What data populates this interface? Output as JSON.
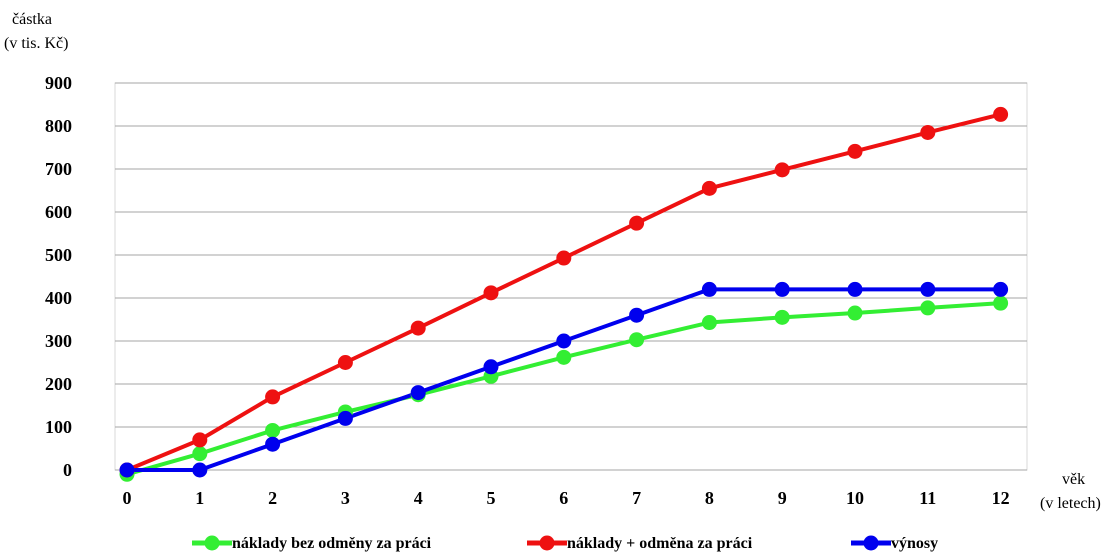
{
  "chart_data": {
    "type": "line",
    "ylabel_line1": "částka",
    "ylabel_line2": "(v tis. Kč)",
    "xlabel_line1": "věk",
    "xlabel_line2": "(v letech)",
    "x": [
      0,
      1,
      2,
      3,
      4,
      5,
      6,
      7,
      8,
      9,
      10,
      11,
      12
    ],
    "ylim": [
      0,
      900
    ],
    "yticks": [
      0,
      100,
      200,
      300,
      400,
      500,
      600,
      700,
      800,
      900
    ],
    "grid": true,
    "legend_position": "bottom",
    "series": [
      {
        "name": "náklady bez odměny za práci",
        "color": "#33ee33",
        "values": [
          -10,
          38,
          92,
          135,
          175,
          218,
          262,
          303,
          343,
          355,
          365,
          377,
          388
        ]
      },
      {
        "name": "náklady + odměna za práci",
        "color": "#ee1111",
        "values": [
          0,
          70,
          170,
          250,
          330,
          412,
          493,
          574,
          655,
          698,
          741,
          785,
          827
        ]
      },
      {
        "name": "výnosy",
        "color": "#0000ee",
        "values": [
          0,
          0,
          60,
          120,
          180,
          240,
          300,
          360,
          420,
          420,
          420,
          420,
          420
        ]
      }
    ]
  }
}
